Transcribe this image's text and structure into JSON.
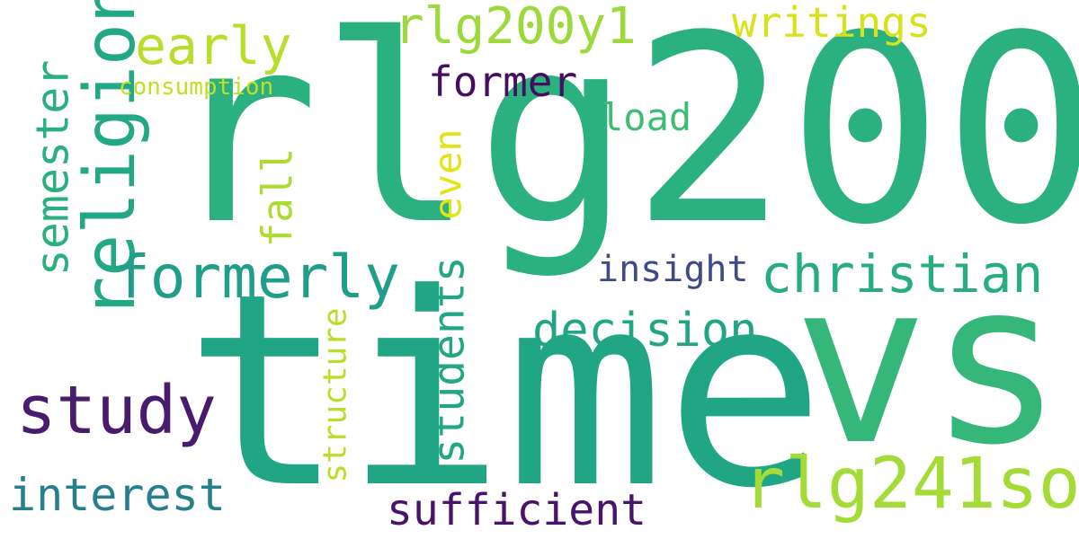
{
  "words": [
    {
      "key": "rlg200",
      "text": "rlg200",
      "color": "#2BB07F"
    },
    {
      "key": "time",
      "text": "time",
      "color": "#21A685"
    },
    {
      "key": "vs",
      "text": "vs",
      "color": "#35B779"
    },
    {
      "key": "religion",
      "text": "religion",
      "color": "#22A884"
    },
    {
      "key": "formerly",
      "text": "formerly",
      "color": "#1F9E89"
    },
    {
      "key": "christian",
      "text": "christian",
      "color": "#27AD81"
    },
    {
      "key": "study",
      "text": "study",
      "color": "#481B6D"
    },
    {
      "key": "rlg241so",
      "text": "rlg241so",
      "color": "#A5DB36"
    },
    {
      "key": "early",
      "text": "early",
      "color": "#B8DE29"
    },
    {
      "key": "rlg200y1",
      "text": "rlg200y1",
      "color": "#9CD93B"
    },
    {
      "key": "writings",
      "text": "writings",
      "color": "#D8E219"
    },
    {
      "key": "former",
      "text": "former",
      "color": "#440F5F"
    },
    {
      "key": "semester",
      "text": "semester",
      "color": "#2AB07F"
    },
    {
      "key": "consumption",
      "text": "consumption",
      "color": "#C2DF23"
    },
    {
      "key": "load",
      "text": "load",
      "color": "#3DBC74"
    },
    {
      "key": "fall",
      "text": "fall",
      "color": "#ADDC30"
    },
    {
      "key": "even",
      "text": "even",
      "color": "#E2E418"
    },
    {
      "key": "students",
      "text": "students",
      "color": "#22A785"
    },
    {
      "key": "insight",
      "text": "insight",
      "color": "#3E4A89"
    },
    {
      "key": "decision",
      "text": "decision",
      "color": "#21A585"
    },
    {
      "key": "structure",
      "text": "structure",
      "color": "#BADE28"
    },
    {
      "key": "interest",
      "text": "interest",
      "color": "#277F8E"
    },
    {
      "key": "sufficient",
      "text": "sufficient",
      "color": "#481467"
    }
  ]
}
